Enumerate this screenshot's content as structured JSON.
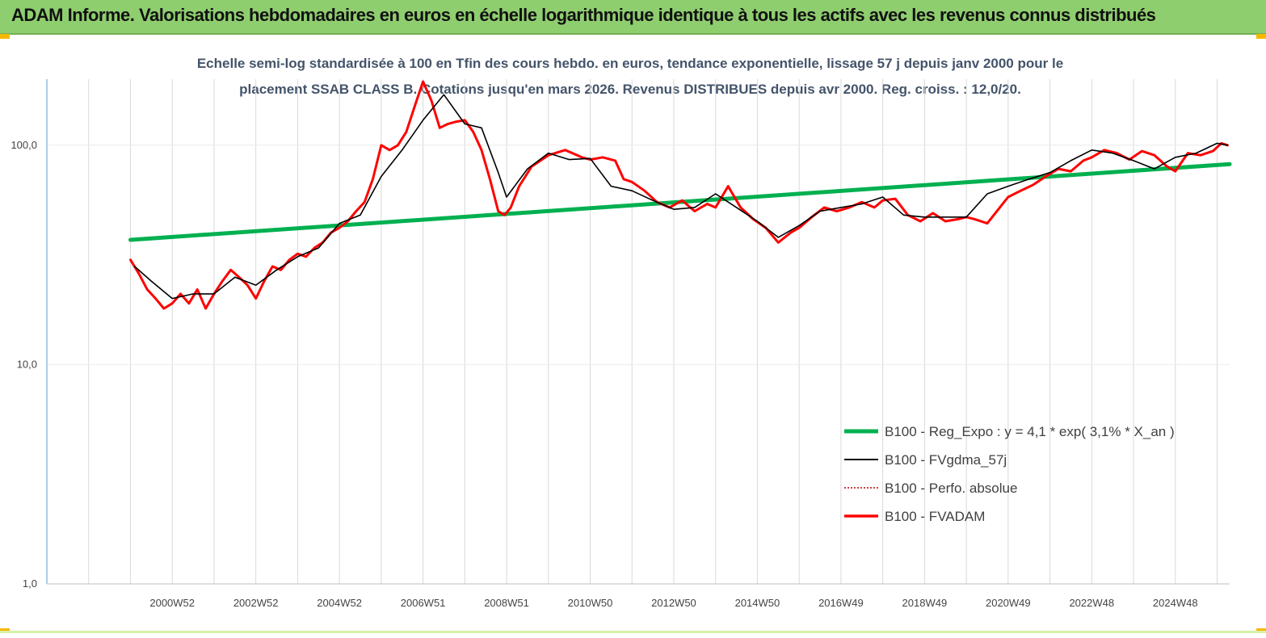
{
  "header": {
    "title": "ADAM Informe. Valorisations hebdomadaires en euros en échelle logarithmique identique à tous les actifs avec les revenus connus distribués"
  },
  "chart_data": {
    "type": "line",
    "title": "",
    "subtitle_lines": [
      "Echelle semi-log standardisée à 100 en Tfin des cours hebdo. en euros, tendance exponentielle, lissage 57 j depuis janv 2000 pour le",
      "placement SSAB CLASS B. Cotations jusqu'en mars 2026. Revenus DISTRIBUES depuis avr 2000. Reg. croiss. : 12,0/20."
    ],
    "y_scale": "log",
    "ylim": [
      1,
      200
    ],
    "xlim": [
      1998.0,
      2026.3
    ],
    "y_ticks": [
      {
        "value": 1,
        "label": "1,0"
      },
      {
        "value": 10,
        "label": "10,0"
      },
      {
        "value": 100,
        "label": "100,0"
      }
    ],
    "x_ticks": [
      {
        "value": 2001.0,
        "label": "2000W52"
      },
      {
        "value": 2003.0,
        "label": "2002W52"
      },
      {
        "value": 2005.0,
        "label": "2004W52"
      },
      {
        "value": 2007.0,
        "label": "2006W51"
      },
      {
        "value": 2009.0,
        "label": "2008W51"
      },
      {
        "value": 2011.0,
        "label": "2010W50"
      },
      {
        "value": 2013.0,
        "label": "2012W50"
      },
      {
        "value": 2015.0,
        "label": "2014W50"
      },
      {
        "value": 2017.0,
        "label": "2016W49"
      },
      {
        "value": 2019.0,
        "label": "2018W49"
      },
      {
        "value": 2021.0,
        "label": "2020W49"
      },
      {
        "value": 2023.0,
        "label": "2022W48"
      },
      {
        "value": 2025.0,
        "label": "2024W48"
      }
    ],
    "grid": "vertical",
    "legend_position": "bottom-right",
    "series": [
      {
        "name": "B100 - Reg_Expo : y = 4,1 *  exp( 3,1% *  X_an )",
        "color": "#00b050",
        "style": "solid",
        "x": [
          2000.0,
          2026.3
        ],
        "y": [
          37,
          82
        ]
      },
      {
        "name": "B100 - FVgdma_57j",
        "color": "#000000",
        "style": "solid",
        "x": [
          2000.1,
          2000.5,
          2001.0,
          2001.5,
          2002.0,
          2002.5,
          2003.0,
          2003.5,
          2004.0,
          2004.5,
          2005.0,
          2005.5,
          2006.0,
          2006.5,
          2007.0,
          2007.5,
          2008.0,
          2008.4,
          2008.8,
          2009.0,
          2009.5,
          2010.0,
          2010.5,
          2011.0,
          2011.5,
          2012.0,
          2012.5,
          2013.0,
          2013.5,
          2014.0,
          2014.5,
          2015.0,
          2015.5,
          2016.0,
          2016.5,
          2017.0,
          2017.5,
          2018.0,
          2018.5,
          2019.0,
          2019.5,
          2020.0,
          2020.5,
          2021.0,
          2021.5,
          2022.0,
          2022.5,
          2023.0,
          2023.5,
          2024.0,
          2024.5,
          2025.0,
          2025.5,
          2026.0,
          2026.25
        ],
        "y": [
          28,
          24,
          20,
          21,
          21,
          25,
          23,
          27,
          31,
          34,
          44,
          48,
          72,
          95,
          130,
          170,
          125,
          120,
          75,
          58,
          78,
          92,
          86,
          87,
          65,
          62,
          56,
          51,
          52,
          60,
          52,
          45,
          38,
          43,
          50,
          52,
          54,
          58,
          48,
          47,
          47,
          47,
          60,
          65,
          70,
          75,
          85,
          95,
          92,
          85,
          78,
          88,
          92,
          102,
          100
        ]
      },
      {
        "name": "B100 - Perfo. absolue",
        "color": "#c00000",
        "style": "dotted",
        "x": [],
        "y": []
      },
      {
        "name": "B100 - FVADAM",
        "color": "#ff0000",
        "style": "solid",
        "x": [
          2000.0,
          2000.2,
          2000.4,
          2000.6,
          2000.8,
          2001.0,
          2001.2,
          2001.4,
          2001.6,
          2001.8,
          2002.0,
          2002.2,
          2002.4,
          2002.6,
          2002.8,
          2003.0,
          2003.2,
          2003.4,
          2003.6,
          2003.8,
          2004.0,
          2004.2,
          2004.4,
          2004.6,
          2004.8,
          2005.0,
          2005.2,
          2005.4,
          2005.6,
          2005.8,
          2006.0,
          2006.2,
          2006.4,
          2006.6,
          2006.8,
          2007.0,
          2007.2,
          2007.4,
          2007.6,
          2007.8,
          2008.0,
          2008.2,
          2008.4,
          2008.6,
          2008.8,
          2008.95,
          2009.1,
          2009.3,
          2009.6,
          2010.0,
          2010.4,
          2010.8,
          2011.0,
          2011.3,
          2011.6,
          2011.8,
          2012.0,
          2012.3,
          2012.6,
          2012.9,
          2013.2,
          2013.5,
          2013.8,
          2014.0,
          2014.3,
          2014.6,
          2014.9,
          2015.2,
          2015.5,
          2015.8,
          2016.0,
          2016.3,
          2016.6,
          2016.9,
          2017.2,
          2017.5,
          2017.8,
          2018.0,
          2018.3,
          2018.6,
          2018.9,
          2019.2,
          2019.5,
          2019.8,
          2020.0,
          2020.2,
          2020.5,
          2020.8,
          2021.0,
          2021.3,
          2021.6,
          2021.9,
          2022.2,
          2022.5,
          2022.8,
          2023.0,
          2023.3,
          2023.6,
          2023.9,
          2024.2,
          2024.5,
          2024.8,
          2025.0,
          2025.3,
          2025.6,
          2025.9,
          2026.1,
          2026.25
        ],
        "y": [
          30,
          26,
          22,
          20,
          18,
          19,
          21,
          19,
          22,
          18,
          21,
          24,
          27,
          25,
          23,
          20,
          24,
          28,
          27,
          30,
          32,
          31,
          34,
          36,
          40,
          42,
          45,
          50,
          55,
          70,
          100,
          95,
          100,
          115,
          150,
          195,
          160,
          120,
          125,
          128,
          130,
          115,
          95,
          70,
          50,
          48,
          52,
          65,
          80,
          90,
          95,
          88,
          86,
          88,
          85,
          70,
          68,
          62,
          55,
          52,
          56,
          50,
          54,
          52,
          65,
          52,
          46,
          42,
          36,
          40,
          42,
          47,
          52,
          50,
          52,
          55,
          52,
          56,
          57,
          48,
          45,
          49,
          45,
          46,
          47,
          46,
          44,
          52,
          58,
          62,
          66,
          72,
          78,
          76,
          85,
          88,
          95,
          92,
          86,
          94,
          90,
          80,
          76,
          92,
          90,
          94,
          102,
          100
        ]
      }
    ]
  }
}
